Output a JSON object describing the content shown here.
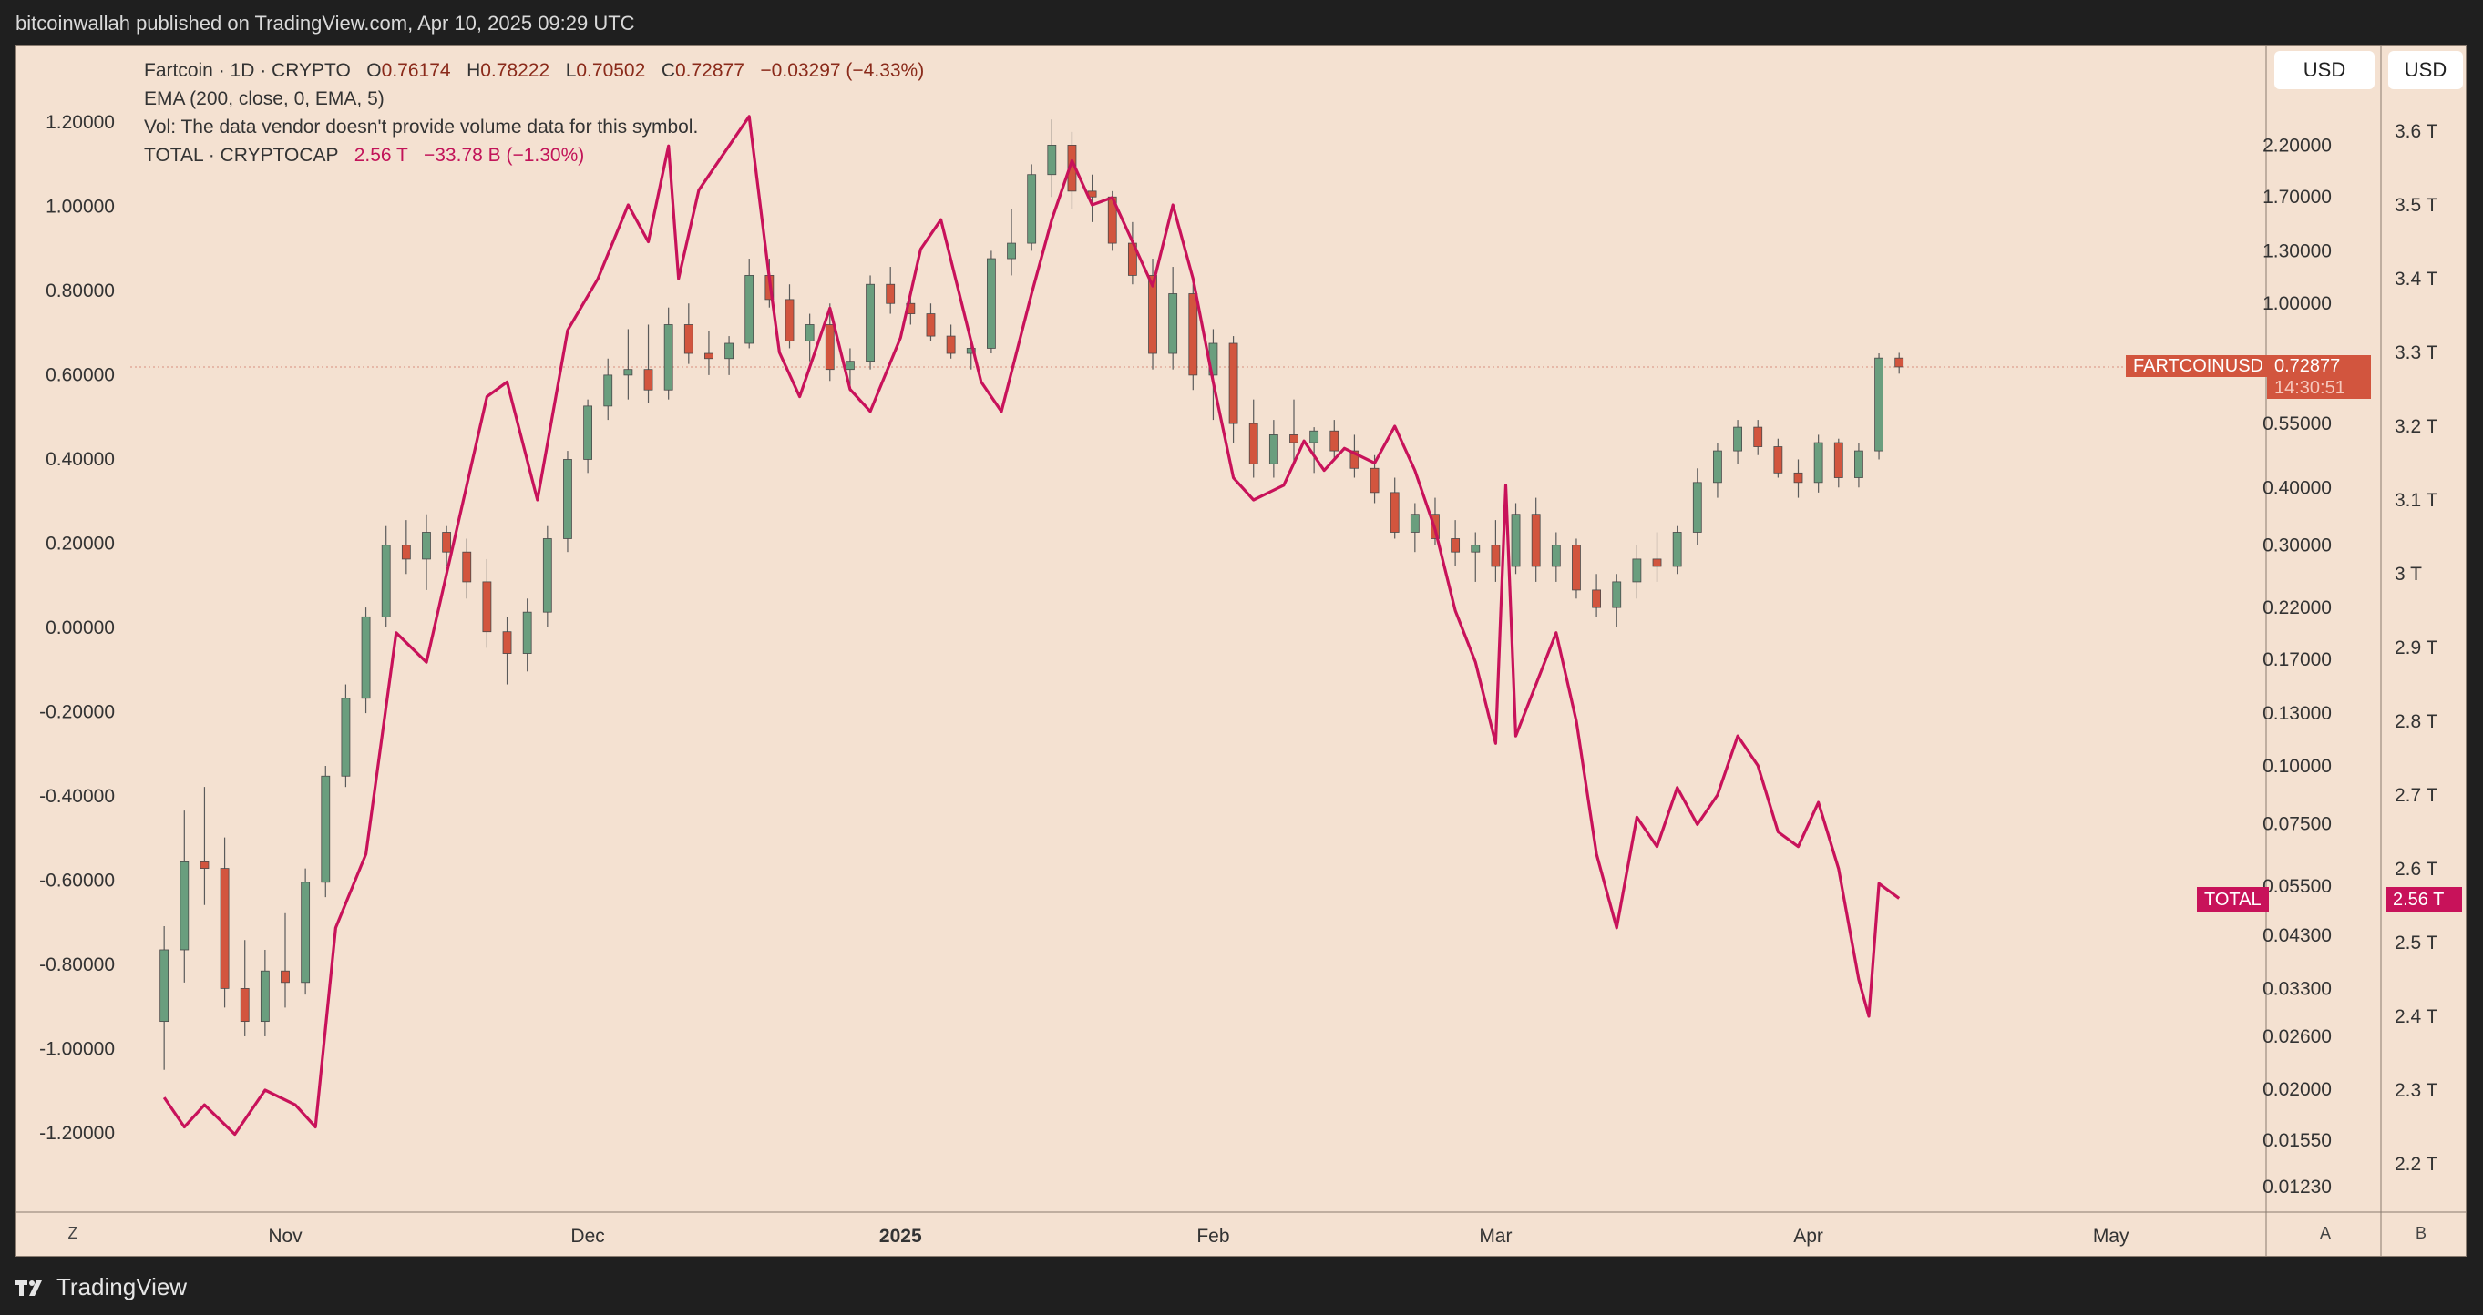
{
  "header": {
    "publisher": "bitcoinwallah published on TradingView.com, Apr 10, 2025 09:29 UTC"
  },
  "legend": {
    "symbol": "Fartcoin · 1D · CRYPTO",
    "open_label": "O",
    "open": "0.76174",
    "high_label": "H",
    "high": "0.78222",
    "low_label": "L",
    "low": "0.70502",
    "close_label": "C",
    "close": "0.72877",
    "change": "−0.03297 (−4.33%)",
    "ema": "EMA (200, close, 0, EMA, 5)",
    "vol": "Vol: The data vendor doesn't provide volume data for this symbol.",
    "total_symbol": "TOTAL · CRYPTOCAP",
    "total_value": "2.56 T",
    "total_change": "−33.78 B (−1.30%)"
  },
  "currency_buttons": [
    "USD",
    "USD"
  ],
  "price_tag": {
    "symbol": "FARTCOINUSD",
    "value": "0.72877",
    "countdown": "14:30:51"
  },
  "total_tag": {
    "symbol": "TOTAL",
    "value": "2.56 T"
  },
  "axis_buttons": {
    "left": "Z",
    "right_a": "A",
    "right_b": "B"
  },
  "footer": {
    "brand": "TradingView"
  },
  "colors": {
    "up": "#6a9e7e",
    "down": "#d2553e",
    "total_line": "#c8125a",
    "background": "#f4e1d1"
  },
  "chart_data": {
    "type": "candlestick+line",
    "left_axis": {
      "ticks": [
        "1.20000",
        "1.00000",
        "0.80000",
        "0.60000",
        "0.40000",
        "0.20000",
        "0.00000",
        "-0.20000",
        "-0.40000",
        "-0.60000",
        "-0.80000",
        "-1.00000",
        "-1.20000"
      ]
    },
    "right_axis_fartcoin": {
      "scale": "log",
      "ticks": [
        "2.20000",
        "1.70000",
        "1.30000",
        "1.00000",
        "0.55000",
        "0.40000",
        "0.30000",
        "0.22000",
        "0.17000",
        "0.13000",
        "0.10000",
        "0.07500",
        "0.05500",
        "0.04300",
        "0.03300",
        "0.02600",
        "0.02000",
        "0.01550",
        "0.01230"
      ]
    },
    "right_axis_total": {
      "ticks": [
        "3.6 T",
        "3.5 T",
        "3.4 T",
        "3.3 T",
        "3.2 T",
        "3.1 T",
        "3 T",
        "2.9 T",
        "2.8 T",
        "2.7 T",
        "2.6 T",
        "2.5 T",
        "2.4 T",
        "2.3 T",
        "2.2 T"
      ]
    },
    "x_axis": {
      "ticks": [
        "Nov",
        "Dec",
        "2025",
        "Feb",
        "Mar",
        "Apr",
        "May"
      ]
    },
    "fartcoin_candles": [
      {
        "t": "2024-10-20",
        "o": 0.028,
        "h": 0.045,
        "l": 0.022,
        "c": 0.04
      },
      {
        "t": "2024-10-22",
        "o": 0.04,
        "h": 0.08,
        "l": 0.034,
        "c": 0.062
      },
      {
        "t": "2024-10-24",
        "o": 0.062,
        "h": 0.09,
        "l": 0.05,
        "c": 0.06
      },
      {
        "t": "2024-10-26",
        "o": 0.06,
        "h": 0.07,
        "l": 0.03,
        "c": 0.033
      },
      {
        "t": "2024-10-28",
        "o": 0.033,
        "h": 0.042,
        "l": 0.026,
        "c": 0.028
      },
      {
        "t": "2024-10-30",
        "o": 0.028,
        "h": 0.04,
        "l": 0.026,
        "c": 0.036
      },
      {
        "t": "2024-11-01",
        "o": 0.036,
        "h": 0.048,
        "l": 0.03,
        "c": 0.034
      },
      {
        "t": "2024-11-03",
        "o": 0.034,
        "h": 0.06,
        "l": 0.032,
        "c": 0.056
      },
      {
        "t": "2024-11-05",
        "o": 0.056,
        "h": 0.1,
        "l": 0.052,
        "c": 0.095
      },
      {
        "t": "2024-11-07",
        "o": 0.095,
        "h": 0.15,
        "l": 0.09,
        "c": 0.14
      },
      {
        "t": "2024-11-09",
        "o": 0.14,
        "h": 0.22,
        "l": 0.13,
        "c": 0.21
      },
      {
        "t": "2024-11-11",
        "o": 0.21,
        "h": 0.33,
        "l": 0.2,
        "c": 0.3
      },
      {
        "t": "2024-11-13",
        "o": 0.3,
        "h": 0.34,
        "l": 0.26,
        "c": 0.28
      },
      {
        "t": "2024-11-15",
        "o": 0.28,
        "h": 0.35,
        "l": 0.24,
        "c": 0.32
      },
      {
        "t": "2024-11-17",
        "o": 0.32,
        "h": 0.33,
        "l": 0.27,
        "c": 0.29
      },
      {
        "t": "2024-11-19",
        "o": 0.29,
        "h": 0.31,
        "l": 0.23,
        "c": 0.25
      },
      {
        "t": "2024-11-21",
        "o": 0.25,
        "h": 0.28,
        "l": 0.18,
        "c": 0.195
      },
      {
        "t": "2024-11-23",
        "o": 0.195,
        "h": 0.21,
        "l": 0.15,
        "c": 0.175
      },
      {
        "t": "2024-11-25",
        "o": 0.175,
        "h": 0.23,
        "l": 0.16,
        "c": 0.215
      },
      {
        "t": "2024-11-27",
        "o": 0.215,
        "h": 0.33,
        "l": 0.2,
        "c": 0.31
      },
      {
        "t": "2024-11-29",
        "o": 0.31,
        "h": 0.48,
        "l": 0.29,
        "c": 0.46
      },
      {
        "t": "2024-12-01",
        "o": 0.46,
        "h": 0.62,
        "l": 0.43,
        "c": 0.6
      },
      {
        "t": "2024-12-03",
        "o": 0.6,
        "h": 0.76,
        "l": 0.56,
        "c": 0.7
      },
      {
        "t": "2024-12-05",
        "o": 0.7,
        "h": 0.88,
        "l": 0.62,
        "c": 0.72
      },
      {
        "t": "2024-12-07",
        "o": 0.72,
        "h": 0.9,
        "l": 0.61,
        "c": 0.65
      },
      {
        "t": "2024-12-09",
        "o": 0.65,
        "h": 0.98,
        "l": 0.62,
        "c": 0.9
      },
      {
        "t": "2024-12-11",
        "o": 0.9,
        "h": 1.0,
        "l": 0.74,
        "c": 0.78
      },
      {
        "t": "2024-12-13",
        "o": 0.78,
        "h": 0.87,
        "l": 0.7,
        "c": 0.76
      },
      {
        "t": "2024-12-15",
        "o": 0.76,
        "h": 0.85,
        "l": 0.7,
        "c": 0.82
      },
      {
        "t": "2024-12-17",
        "o": 0.82,
        "h": 1.25,
        "l": 0.8,
        "c": 1.15
      },
      {
        "t": "2024-12-19",
        "o": 1.15,
        "h": 1.25,
        "l": 0.98,
        "c": 1.02
      },
      {
        "t": "2024-12-21",
        "o": 1.02,
        "h": 1.1,
        "l": 0.8,
        "c": 0.83
      },
      {
        "t": "2024-12-23",
        "o": 0.83,
        "h": 0.95,
        "l": 0.75,
        "c": 0.9
      },
      {
        "t": "2024-12-25",
        "o": 0.9,
        "h": 1.0,
        "l": 0.68,
        "c": 0.72
      },
      {
        "t": "2024-12-27",
        "o": 0.72,
        "h": 0.8,
        "l": 0.65,
        "c": 0.75
      },
      {
        "t": "2024-12-29",
        "o": 0.75,
        "h": 1.15,
        "l": 0.72,
        "c": 1.1
      },
      {
        "t": "2024-12-31",
        "o": 1.1,
        "h": 1.2,
        "l": 0.95,
        "c": 1.0
      },
      {
        "t": "2025-01-02",
        "o": 1.0,
        "h": 1.05,
        "l": 0.9,
        "c": 0.95
      },
      {
        "t": "2025-01-04",
        "o": 0.95,
        "h": 1.0,
        "l": 0.83,
        "c": 0.85
      },
      {
        "t": "2025-01-06",
        "o": 0.85,
        "h": 0.9,
        "l": 0.76,
        "c": 0.78
      },
      {
        "t": "2025-01-08",
        "o": 0.78,
        "h": 0.82,
        "l": 0.72,
        "c": 0.8
      },
      {
        "t": "2025-01-10",
        "o": 0.8,
        "h": 1.3,
        "l": 0.78,
        "c": 1.25
      },
      {
        "t": "2025-01-12",
        "o": 1.25,
        "h": 1.6,
        "l": 1.15,
        "c": 1.35
      },
      {
        "t": "2025-01-14",
        "o": 1.35,
        "h": 2.0,
        "l": 1.3,
        "c": 1.9
      },
      {
        "t": "2025-01-16",
        "o": 1.9,
        "h": 2.5,
        "l": 1.7,
        "c": 2.2
      },
      {
        "t": "2025-01-18",
        "o": 2.2,
        "h": 2.35,
        "l": 1.6,
        "c": 1.75
      },
      {
        "t": "2025-01-20",
        "o": 1.75,
        "h": 1.9,
        "l": 1.5,
        "c": 1.7
      },
      {
        "t": "2025-01-22",
        "o": 1.7,
        "h": 1.75,
        "l": 1.3,
        "c": 1.35
      },
      {
        "t": "2025-01-24",
        "o": 1.35,
        "h": 1.5,
        "l": 1.1,
        "c": 1.15
      },
      {
        "t": "2025-01-26",
        "o": 1.15,
        "h": 1.25,
        "l": 0.72,
        "c": 0.78
      },
      {
        "t": "2025-01-28",
        "o": 0.78,
        "h": 1.2,
        "l": 0.72,
        "c": 1.05
      },
      {
        "t": "2025-01-30",
        "o": 1.05,
        "h": 1.1,
        "l": 0.65,
        "c": 0.7
      },
      {
        "t": "2025-02-01",
        "o": 0.7,
        "h": 0.88,
        "l": 0.56,
        "c": 0.82
      },
      {
        "t": "2025-02-03",
        "o": 0.82,
        "h": 0.85,
        "l": 0.5,
        "c": 0.55
      },
      {
        "t": "2025-02-05",
        "o": 0.55,
        "h": 0.62,
        "l": 0.42,
        "c": 0.45
      },
      {
        "t": "2025-02-07",
        "o": 0.45,
        "h": 0.56,
        "l": 0.42,
        "c": 0.52
      },
      {
        "t": "2025-02-09",
        "o": 0.52,
        "h": 0.62,
        "l": 0.45,
        "c": 0.5
      },
      {
        "t": "2025-02-11",
        "o": 0.5,
        "h": 0.54,
        "l": 0.43,
        "c": 0.53
      },
      {
        "t": "2025-02-13",
        "o": 0.53,
        "h": 0.56,
        "l": 0.46,
        "c": 0.48
      },
      {
        "t": "2025-02-15",
        "o": 0.48,
        "h": 0.52,
        "l": 0.42,
        "c": 0.44
      },
      {
        "t": "2025-02-17",
        "o": 0.44,
        "h": 0.47,
        "l": 0.37,
        "c": 0.39
      },
      {
        "t": "2025-02-19",
        "o": 0.39,
        "h": 0.42,
        "l": 0.31,
        "c": 0.32
      },
      {
        "t": "2025-02-21",
        "o": 0.32,
        "h": 0.37,
        "l": 0.29,
        "c": 0.35
      },
      {
        "t": "2025-02-23",
        "o": 0.35,
        "h": 0.38,
        "l": 0.3,
        "c": 0.31
      },
      {
        "t": "2025-02-25",
        "o": 0.31,
        "h": 0.34,
        "l": 0.27,
        "c": 0.29
      },
      {
        "t": "2025-02-27",
        "o": 0.29,
        "h": 0.32,
        "l": 0.25,
        "c": 0.3
      },
      {
        "t": "2025-03-01",
        "o": 0.3,
        "h": 0.34,
        "l": 0.25,
        "c": 0.27
      },
      {
        "t": "2025-03-03",
        "o": 0.27,
        "h": 0.37,
        "l": 0.26,
        "c": 0.35
      },
      {
        "t": "2025-03-05",
        "o": 0.35,
        "h": 0.38,
        "l": 0.25,
        "c": 0.27
      },
      {
        "t": "2025-03-07",
        "o": 0.27,
        "h": 0.32,
        "l": 0.25,
        "c": 0.3
      },
      {
        "t": "2025-03-09",
        "o": 0.3,
        "h": 0.31,
        "l": 0.23,
        "c": 0.24
      },
      {
        "t": "2025-03-11",
        "o": 0.24,
        "h": 0.26,
        "l": 0.21,
        "c": 0.22
      },
      {
        "t": "2025-03-13",
        "o": 0.22,
        "h": 0.26,
        "l": 0.2,
        "c": 0.25
      },
      {
        "t": "2025-03-15",
        "o": 0.25,
        "h": 0.3,
        "l": 0.23,
        "c": 0.28
      },
      {
        "t": "2025-03-17",
        "o": 0.28,
        "h": 0.32,
        "l": 0.25,
        "c": 0.27
      },
      {
        "t": "2025-03-19",
        "o": 0.27,
        "h": 0.33,
        "l": 0.26,
        "c": 0.32
      },
      {
        "t": "2025-03-21",
        "o": 0.32,
        "h": 0.44,
        "l": 0.3,
        "c": 0.41
      },
      {
        "t": "2025-03-23",
        "o": 0.41,
        "h": 0.5,
        "l": 0.38,
        "c": 0.48
      },
      {
        "t": "2025-03-25",
        "o": 0.48,
        "h": 0.56,
        "l": 0.45,
        "c": 0.54
      },
      {
        "t": "2025-03-27",
        "o": 0.54,
        "h": 0.56,
        "l": 0.47,
        "c": 0.49
      },
      {
        "t": "2025-03-29",
        "o": 0.49,
        "h": 0.51,
        "l": 0.42,
        "c": 0.43
      },
      {
        "t": "2025-03-31",
        "o": 0.43,
        "h": 0.46,
        "l": 0.38,
        "c": 0.41
      },
      {
        "t": "2025-04-02",
        "o": 0.41,
        "h": 0.52,
        "l": 0.39,
        "c": 0.5
      },
      {
        "t": "2025-04-04",
        "o": 0.5,
        "h": 0.51,
        "l": 0.4,
        "c": 0.42
      },
      {
        "t": "2025-04-06",
        "o": 0.42,
        "h": 0.5,
        "l": 0.4,
        "c": 0.48
      },
      {
        "t": "2025-04-08",
        "o": 0.48,
        "h": 0.78,
        "l": 0.46,
        "c": 0.762
      },
      {
        "t": "2025-04-10",
        "o": 0.762,
        "h": 0.782,
        "l": 0.705,
        "c": 0.729
      }
    ],
    "total_line": {
      "name": "TOTAL · CRYPTOCAP",
      "points": [
        {
          "t": "2024-10-20",
          "v": 2.29
        },
        {
          "t": "2024-10-22",
          "v": 2.25
        },
        {
          "t": "2024-10-24",
          "v": 2.28
        },
        {
          "t": "2024-10-27",
          "v": 2.24
        },
        {
          "t": "2024-10-30",
          "v": 2.3
        },
        {
          "t": "2024-11-02",
          "v": 2.28
        },
        {
          "t": "2024-11-04",
          "v": 2.25
        },
        {
          "t": "2024-11-06",
          "v": 2.52
        },
        {
          "t": "2024-11-09",
          "v": 2.62
        },
        {
          "t": "2024-11-12",
          "v": 2.92
        },
        {
          "t": "2024-11-15",
          "v": 2.88
        },
        {
          "t": "2024-11-18",
          "v": 3.06
        },
        {
          "t": "2024-11-21",
          "v": 3.24
        },
        {
          "t": "2024-11-23",
          "v": 3.26
        },
        {
          "t": "2024-11-26",
          "v": 3.1
        },
        {
          "t": "2024-11-29",
          "v": 3.33
        },
        {
          "t": "2024-12-02",
          "v": 3.4
        },
        {
          "t": "2024-12-05",
          "v": 3.5
        },
        {
          "t": "2024-12-07",
          "v": 3.45
        },
        {
          "t": "2024-12-09",
          "v": 3.58
        },
        {
          "t": "2024-12-10",
          "v": 3.4
        },
        {
          "t": "2024-12-12",
          "v": 3.52
        },
        {
          "t": "2024-12-15",
          "v": 3.58
        },
        {
          "t": "2024-12-17",
          "v": 3.62
        },
        {
          "t": "2024-12-19",
          "v": 3.4
        },
        {
          "t": "2024-12-20",
          "v": 3.3
        },
        {
          "t": "2024-12-22",
          "v": 3.24
        },
        {
          "t": "2024-12-25",
          "v": 3.36
        },
        {
          "t": "2024-12-27",
          "v": 3.25
        },
        {
          "t": "2024-12-29",
          "v": 3.22
        },
        {
          "t": "2025-01-01",
          "v": 3.32
        },
        {
          "t": "2025-01-03",
          "v": 3.44
        },
        {
          "t": "2025-01-05",
          "v": 3.48
        },
        {
          "t": "2025-01-07",
          "v": 3.37
        },
        {
          "t": "2025-01-09",
          "v": 3.26
        },
        {
          "t": "2025-01-11",
          "v": 3.22
        },
        {
          "t": "2025-01-14",
          "v": 3.38
        },
        {
          "t": "2025-01-16",
          "v": 3.48
        },
        {
          "t": "2025-01-18",
          "v": 3.56
        },
        {
          "t": "2025-01-20",
          "v": 3.5
        },
        {
          "t": "2025-01-22",
          "v": 3.51
        },
        {
          "t": "2025-01-24",
          "v": 3.45
        },
        {
          "t": "2025-01-26",
          "v": 3.39
        },
        {
          "t": "2025-01-28",
          "v": 3.5
        },
        {
          "t": "2025-01-30",
          "v": 3.4
        },
        {
          "t": "2025-02-01",
          "v": 3.26
        },
        {
          "t": "2025-02-03",
          "v": 3.13
        },
        {
          "t": "2025-02-05",
          "v": 3.1
        },
        {
          "t": "2025-02-08",
          "v": 3.12
        },
        {
          "t": "2025-02-10",
          "v": 3.18
        },
        {
          "t": "2025-02-12",
          "v": 3.14
        },
        {
          "t": "2025-02-14",
          "v": 3.17
        },
        {
          "t": "2025-02-17",
          "v": 3.15
        },
        {
          "t": "2025-02-19",
          "v": 3.2
        },
        {
          "t": "2025-02-21",
          "v": 3.14
        },
        {
          "t": "2025-02-23",
          "v": 3.06
        },
        {
          "t": "2025-02-25",
          "v": 2.95
        },
        {
          "t": "2025-02-27",
          "v": 2.88
        },
        {
          "t": "2025-03-01",
          "v": 2.77
        },
        {
          "t": "2025-03-02",
          "v": 3.12
        },
        {
          "t": "2025-03-03",
          "v": 2.78
        },
        {
          "t": "2025-03-05",
          "v": 2.85
        },
        {
          "t": "2025-03-07",
          "v": 2.92
        },
        {
          "t": "2025-03-09",
          "v": 2.8
        },
        {
          "t": "2025-03-11",
          "v": 2.62
        },
        {
          "t": "2025-03-13",
          "v": 2.52
        },
        {
          "t": "2025-03-15",
          "v": 2.67
        },
        {
          "t": "2025-03-17",
          "v": 2.63
        },
        {
          "t": "2025-03-19",
          "v": 2.71
        },
        {
          "t": "2025-03-21",
          "v": 2.66
        },
        {
          "t": "2025-03-23",
          "v": 2.7
        },
        {
          "t": "2025-03-25",
          "v": 2.78
        },
        {
          "t": "2025-03-27",
          "v": 2.74
        },
        {
          "t": "2025-03-29",
          "v": 2.65
        },
        {
          "t": "2025-03-31",
          "v": 2.63
        },
        {
          "t": "2025-04-02",
          "v": 2.69
        },
        {
          "t": "2025-04-04",
          "v": 2.6
        },
        {
          "t": "2025-04-06",
          "v": 2.45
        },
        {
          "t": "2025-04-07",
          "v": 2.4
        },
        {
          "t": "2025-04-08",
          "v": 2.58
        },
        {
          "t": "2025-04-10",
          "v": 2.56
        }
      ]
    }
  }
}
